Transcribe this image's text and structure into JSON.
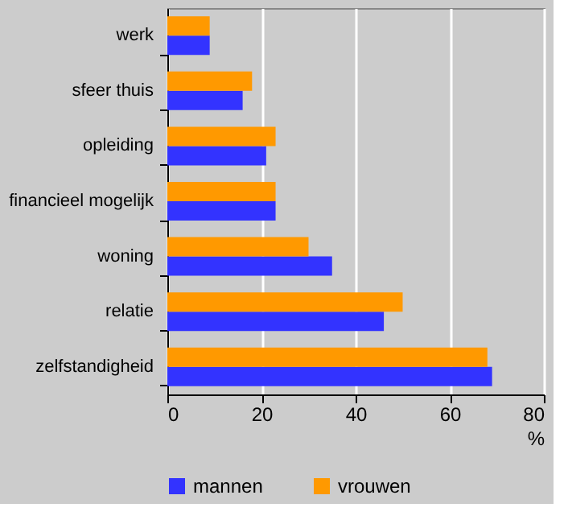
{
  "chart_data": {
    "type": "bar",
    "orientation": "horizontal",
    "xlabel": "%",
    "categories": [
      "werk",
      "sfeer thuis",
      "opleiding",
      "financieel mogelijk",
      "woning",
      "relatie",
      "zelfstandigheid"
    ],
    "series": [
      {
        "name": "mannen",
        "color": "#3333ff",
        "values": [
          9,
          16,
          21,
          23,
          35,
          46,
          69
        ]
      },
      {
        "name": "vrouwen",
        "color": "#ff9900",
        "values": [
          9,
          18,
          23,
          23,
          30,
          50,
          68
        ]
      }
    ],
    "xlim": [
      0,
      80
    ],
    "xticks": [
      0,
      20,
      40,
      60,
      80
    ],
    "grid": "x",
    "legend": "bottom"
  }
}
